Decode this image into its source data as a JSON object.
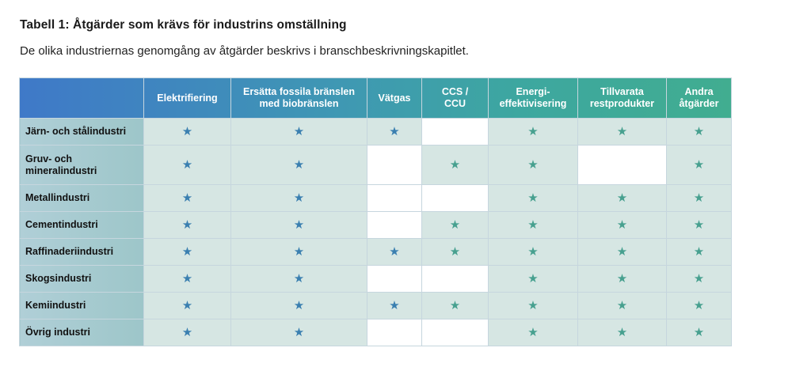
{
  "title": "Tabell 1: Åtgärder som krävs för industrins omställning",
  "subtitle": "De olika industriernas genomgång av åtgärder beskrivs i branschbeskrivningskapitlet.",
  "star_glyph": "★",
  "colors": {
    "star_blue": "#3a7fb0",
    "star_teal": "#47a08f",
    "cell_filled": "#d6e6e3",
    "cell_empty": "#ffffff"
  },
  "columns": [
    {
      "label": "Elektrifiering"
    },
    {
      "label": "Ersätta fossila bränslen med biobränslen"
    },
    {
      "label": "Vätgas"
    },
    {
      "label": "CCS / CCU"
    },
    {
      "label": "Energi-effektivisering"
    },
    {
      "label": "Tillvarata restprodukter"
    },
    {
      "label": "Andra åtgärder"
    }
  ],
  "rows": [
    {
      "label": "Järn- och stålindustri",
      "marks": [
        true,
        true,
        true,
        false,
        true,
        true,
        true
      ]
    },
    {
      "label": "Gruv- och mineralindustri",
      "marks": [
        true,
        true,
        false,
        true,
        true,
        false,
        true
      ]
    },
    {
      "label": "Metallindustri",
      "marks": [
        true,
        true,
        false,
        false,
        true,
        true,
        true
      ]
    },
    {
      "label": "Cementindustri",
      "marks": [
        true,
        true,
        false,
        true,
        true,
        true,
        true
      ]
    },
    {
      "label": "Raffinaderiindustri",
      "marks": [
        true,
        true,
        true,
        true,
        true,
        true,
        true
      ]
    },
    {
      "label": "Skogsindustri",
      "marks": [
        true,
        true,
        false,
        false,
        true,
        true,
        true
      ]
    },
    {
      "label": "Kemiindustri",
      "marks": [
        true,
        true,
        true,
        true,
        true,
        true,
        true
      ]
    },
    {
      "label": "Övrig industri",
      "marks": [
        true,
        true,
        false,
        false,
        true,
        true,
        true
      ]
    }
  ]
}
